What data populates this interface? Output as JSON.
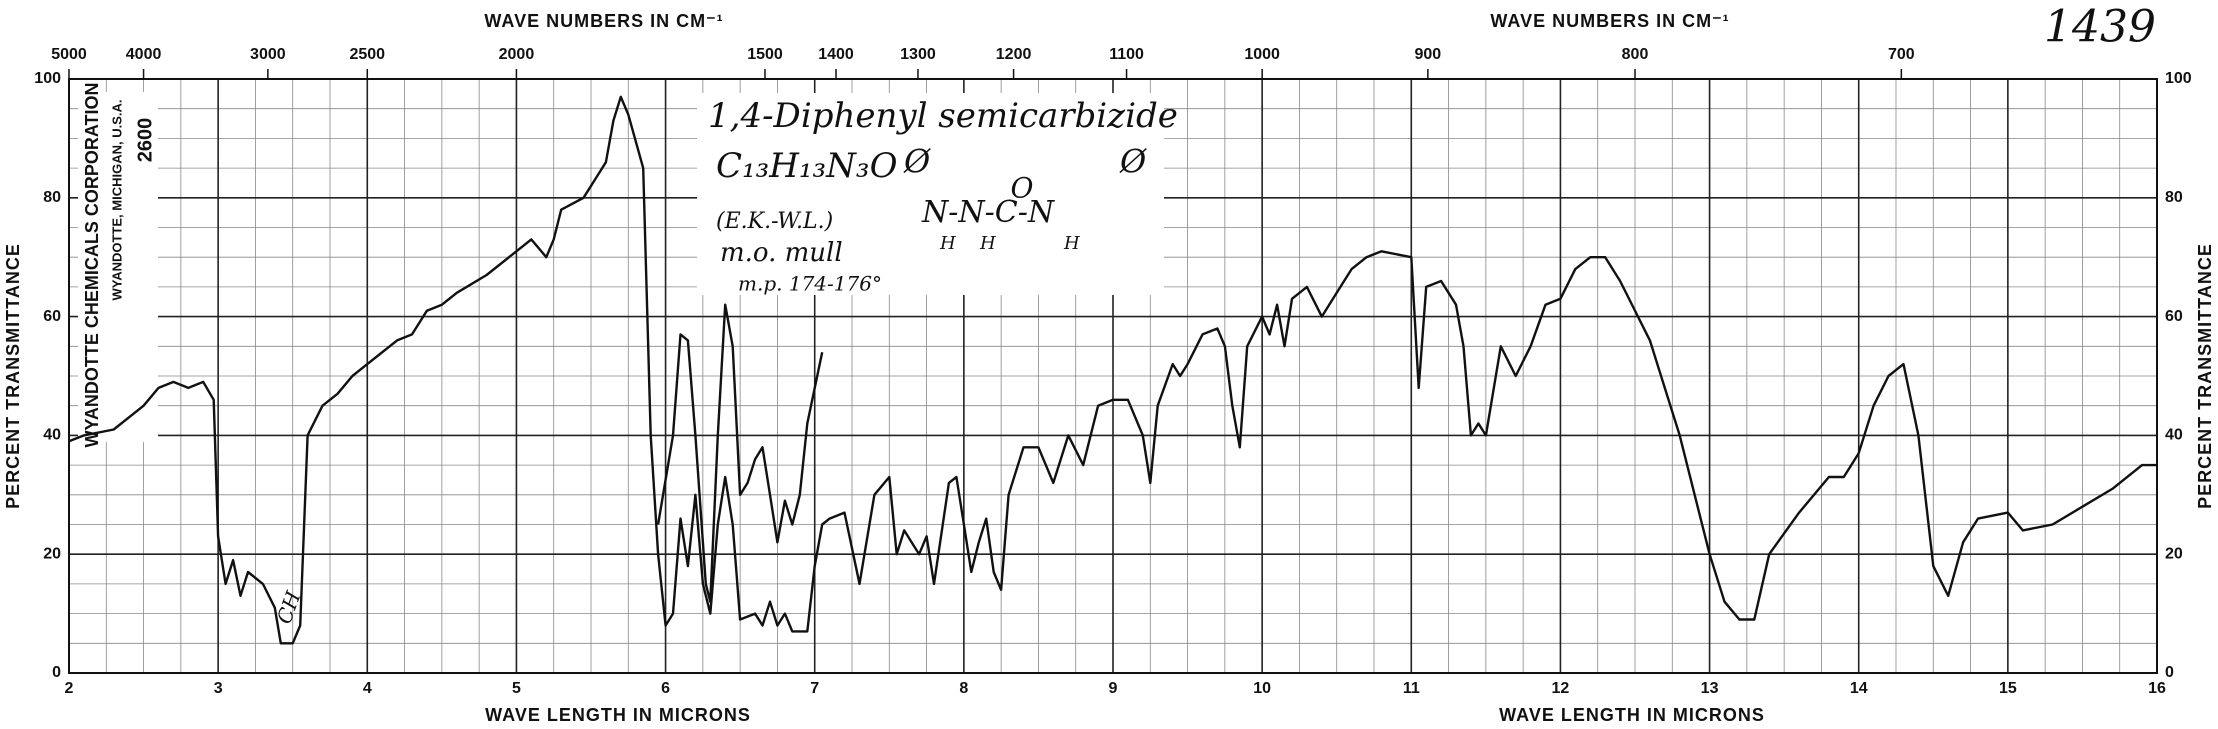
{
  "chart_data": {
    "type": "line",
    "title_x_bottom": "WAVE LENGTH IN MICRONS",
    "title_x_top": "WAVE NUMBERS IN CM⁻¹",
    "y_label": "PERCENT TRANSMITTANCE",
    "sheet_number": "1439",
    "company": "WYANDOTTE CHEMICALS CORPORATION",
    "company_address": "WYANDOTTE, MICHIGAN, U.S.A.",
    "chart_number": "2600",
    "compound": "1,4-Diphenyl semicarbizide",
    "formula": "C₁₃H₁₃N₃O",
    "source": "(E.K.-W.L.)",
    "method": "m.o. mull",
    "melting_point": "m.p. 174-176°",
    "structure": {
      "left": "Ø",
      "chain": "N-N-C-N",
      "right": "Ø",
      "oxygen": "O",
      "hydrogens": [
        "H",
        "H",
        "H"
      ]
    },
    "band_note": "CH",
    "xlim": [
      2,
      16
    ],
    "xticks": [
      2,
      3,
      4,
      5,
      6,
      7,
      8,
      9,
      10,
      11,
      12,
      13,
      14,
      15,
      16
    ],
    "x2ticks": [
      5000,
      4000,
      3000,
      2500,
      2000,
      1500,
      1400,
      1300,
      1200,
      1100,
      1000,
      900,
      800,
      700
    ],
    "ylim": [
      0,
      100
    ],
    "yticks": [
      0,
      20,
      40,
      60,
      80,
      100
    ],
    "grid": true,
    "series": [
      {
        "color": "#111111",
        "x": [
          2.0,
          2.1,
          2.3,
          2.4,
          2.5,
          2.6,
          2.7,
          2.8,
          2.9,
          2.97,
          3.0,
          3.05,
          3.1,
          3.15,
          3.2,
          3.3,
          3.38,
          3.42,
          3.5,
          3.55,
          3.6,
          3.7,
          3.8,
          3.9,
          4.0,
          4.2,
          4.3,
          4.35,
          4.4,
          4.5,
          4.6,
          4.8,
          4.95,
          5.1,
          5.2,
          5.25,
          5.3,
          5.45,
          5.55,
          5.6,
          5.65,
          5.7,
          5.75,
          5.85,
          5.9,
          5.95,
          6.0,
          6.05,
          6.1,
          6.15,
          6.2,
          6.25,
          6.3,
          6.35,
          6.4,
          6.45,
          6.5,
          6.6,
          6.65,
          6.7,
          6.75,
          6.8,
          6.85,
          6.95,
          7.0,
          7.05,
          7.1,
          7.2,
          7.3,
          7.4,
          7.5,
          7.55,
          7.6,
          7.7,
          7.75,
          7.8,
          7.9,
          7.95,
          8.0,
          8.05,
          8.1,
          8.15,
          8.2,
          8.25,
          8.3,
          8.4,
          8.5,
          8.6,
          8.7,
          8.8,
          8.9,
          9.0,
          9.1,
          9.2,
          9.25,
          9.3,
          9.4,
          9.45,
          9.5,
          9.6,
          9.7,
          9.75,
          9.8,
          9.85,
          9.9,
          10.0,
          10.05,
          10.1,
          10.15,
          10.2,
          10.3,
          10.4,
          10.5,
          10.6,
          10.7,
          10.8,
          11.0,
          11.05,
          11.1,
          11.2,
          11.3,
          11.35,
          11.4,
          11.45,
          11.5,
          11.6,
          11.7,
          11.8,
          11.9,
          12.0,
          12.1,
          12.2,
          12.3,
          12.4,
          12.6,
          12.8,
          13.0,
          13.1,
          13.2,
          13.3,
          13.4,
          13.6,
          13.8,
          13.9,
          14.0,
          14.1,
          14.2,
          14.3,
          14.4,
          14.5,
          14.6,
          14.7,
          14.8,
          15.0,
          15.1,
          15.3,
          15.5,
          15.7,
          15.9,
          16.0
        ],
        "values": [
          39,
          40,
          41,
          43,
          45,
          48,
          49,
          48,
          49,
          46,
          23,
          15,
          19,
          13,
          17,
          15,
          11,
          5,
          5,
          8,
          40,
          45,
          47,
          50,
          52,
          56,
          57,
          59,
          61,
          62,
          64,
          67,
          70,
          73,
          70,
          73,
          78,
          80,
          84,
          86,
          93,
          97,
          94,
          85,
          40,
          20,
          8,
          10,
          26,
          18,
          30,
          15,
          10,
          25,
          33,
          25,
          9,
          10,
          8,
          12,
          8,
          10,
          7,
          7,
          18,
          25,
          26,
          27,
          15,
          30,
          33,
          20,
          24,
          20,
          23,
          15,
          32,
          33,
          25,
          17,
          22,
          26,
          17,
          14,
          30,
          38,
          38,
          32,
          40,
          35,
          45,
          46,
          46,
          40,
          32,
          45,
          52,
          50,
          52,
          57,
          58,
          55,
          45,
          38,
          55,
          60,
          57,
          62,
          55,
          63,
          65,
          60,
          64,
          68,
          70,
          71,
          70,
          48,
          65,
          66,
          62,
          55,
          40,
          42,
          40,
          55,
          50,
          55,
          62,
          63,
          68,
          70,
          70,
          66,
          56,
          40,
          20,
          12,
          9,
          9,
          20,
          27,
          33,
          33,
          37,
          45,
          50,
          52,
          40,
          18,
          13,
          22,
          26,
          27,
          24,
          25,
          28,
          31,
          35,
          35
        ]
      },
      {
        "color": "#111111",
        "x": [
          5.95,
          6.05,
          6.1,
          6.15,
          6.2,
          6.27,
          6.3,
          6.35,
          6.4,
          6.45,
          6.5,
          6.55,
          6.6,
          6.65,
          6.7,
          6.75,
          6.8,
          6.85,
          6.9,
          6.95,
          7.05
        ],
        "values": [
          25,
          40,
          57,
          56,
          40,
          15,
          12,
          40,
          62,
          55,
          30,
          32,
          36,
          38,
          30,
          22,
          29,
          25,
          30,
          42,
          54
        ]
      }
    ]
  }
}
